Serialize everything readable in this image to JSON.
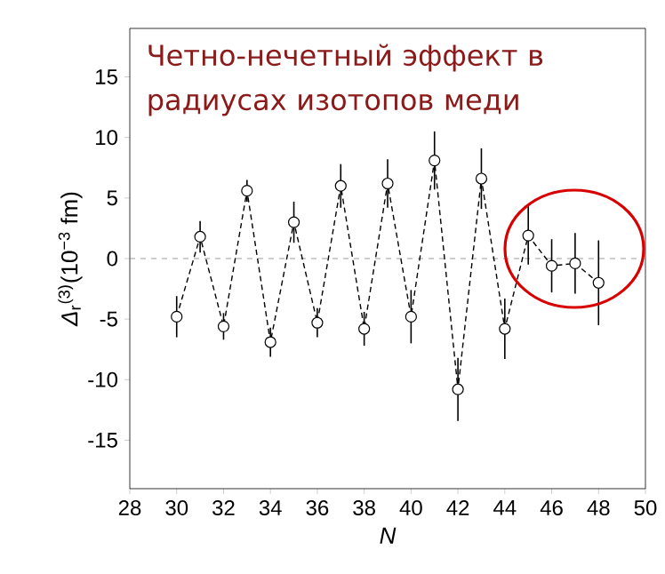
{
  "chart_data": {
    "type": "line",
    "title": "Четно-нечетный эффект в радиусах изотопов меди",
    "xlabel": "*N*",
    "ylabel": "*Δ*$_{r}$$^{(3)}$(10$^{−3}$ fm)",
    "x": [
      30,
      31,
      32,
      33,
      34,
      35,
      36,
      37,
      38,
      39,
      40,
      41,
      42,
      43,
      44,
      45,
      46,
      47,
      48
    ],
    "series": [
      {
        "color": "#000000",
        "values": [
          -4.8,
          1.8,
          -5.6,
          5.6,
          -6.9,
          3.0,
          -5.3,
          6.0,
          -5.8,
          6.2,
          -4.8,
          8.1,
          -10.8,
          6.6,
          -5.8,
          1.9,
          -0.6,
          -0.4,
          -2.0
        ],
        "errors": [
          1.7,
          1.3,
          1.1,
          0.9,
          1.2,
          1.7,
          1.2,
          1.8,
          1.4,
          2.0,
          2.2,
          2.4,
          2.6,
          2.5,
          2.5,
          2.4,
          2.2,
          2.5,
          3.5
        ]
      }
    ],
    "xlim": [
      28,
      50
    ],
    "ylim": [
      -19,
      19
    ],
    "xticks": [
      28,
      30,
      32,
      34,
      36,
      38,
      40,
      42,
      44,
      46,
      48,
      50
    ],
    "yticks": [
      -15,
      -10,
      -5,
      0,
      5,
      10,
      15
    ],
    "ref_lines": [
      {
        "axis": "y",
        "value": 0,
        "color": "#808080",
        "line_style": "dashed"
      }
    ],
    "marker": "circle",
    "line_style": "dashed"
  }
}
